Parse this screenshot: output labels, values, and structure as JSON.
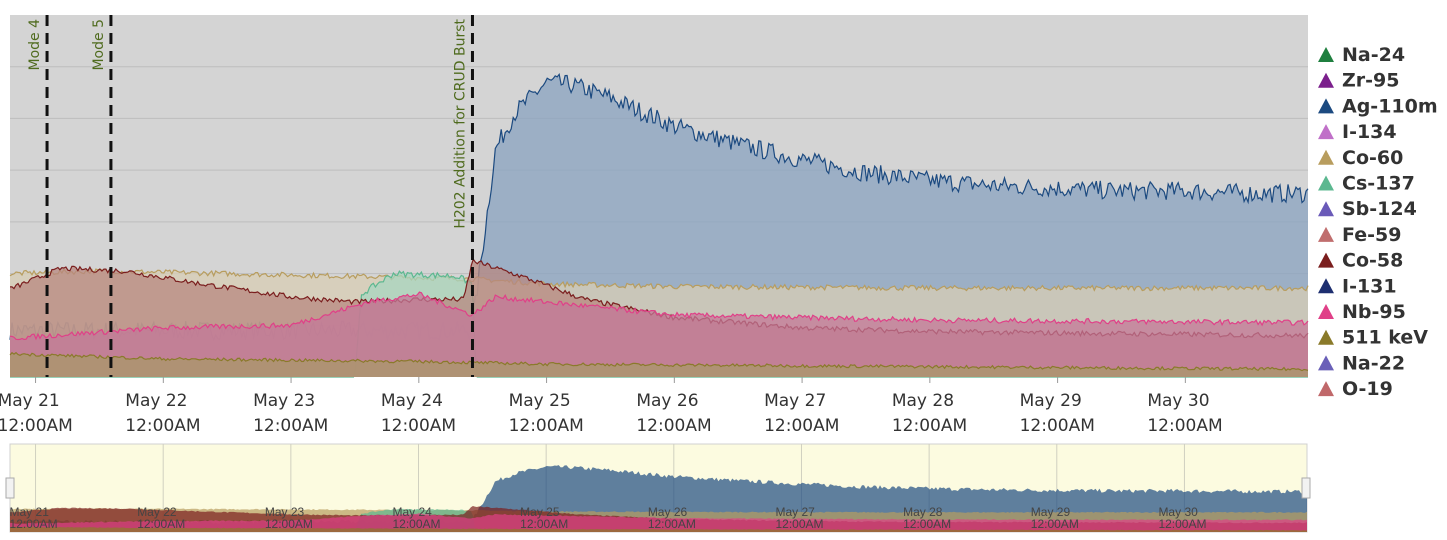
{
  "chart_data": {
    "type": "area",
    "title": "",
    "xlabel": "",
    "ylabel": "",
    "grid": true,
    "legend_position": "right",
    "x_ticks": [
      {
        "day": 21,
        "line1": "May 21",
        "line2": "12:00AM"
      },
      {
        "day": 22,
        "line1": "May 22",
        "line2": "12:00AM"
      },
      {
        "day": 23,
        "line1": "May 23",
        "line2": "12:00AM"
      },
      {
        "day": 24,
        "line1": "May 24",
        "line2": "12:00AM"
      },
      {
        "day": 25,
        "line1": "May 25",
        "line2": "12:00AM"
      },
      {
        "day": 26,
        "line1": "May 26",
        "line2": "12:00AM"
      },
      {
        "day": 27,
        "line1": "May 27",
        "line2": "12:00AM"
      },
      {
        "day": 28,
        "line1": "May 28",
        "line2": "12:00AM"
      },
      {
        "day": 29,
        "line1": "May 29",
        "line2": "12:00AM"
      },
      {
        "day": 30,
        "line1": "May 30",
        "line2": "12:00AM"
      }
    ],
    "x_range": [
      20.8,
      30.96
    ],
    "y_range": [
      0,
      7
    ],
    "events": [
      {
        "day": 21.09,
        "label": "Mode 4"
      },
      {
        "day": 21.59,
        "label": "Mode 5"
      },
      {
        "day": 24.42,
        "label": "H202 Addition for CRUD Burst"
      }
    ],
    "legend": [
      {
        "name": "Na-24",
        "color": "#1f7f3f"
      },
      {
        "name": "Zr-95",
        "color": "#7b1f8c"
      },
      {
        "name": "Ag-110m",
        "color": "#1c4a80"
      },
      {
        "name": "I-134",
        "color": "#c070c8"
      },
      {
        "name": "Co-60",
        "color": "#b89d5e"
      },
      {
        "name": "Cs-137",
        "color": "#5cb890"
      },
      {
        "name": "Sb-124",
        "color": "#6a5ab8"
      },
      {
        "name": "Fe-59",
        "color": "#c06e6e"
      },
      {
        "name": "Co-58",
        "color": "#7a1e1e"
      },
      {
        "name": "I-131",
        "color": "#1e2f70"
      },
      {
        "name": "Nb-95",
        "color": "#e04088"
      },
      {
        "name": "511 keV",
        "color": "#8a7a2a"
      },
      {
        "name": "Na-22",
        "color": "#6a60b8"
      },
      {
        "name": "O-19",
        "color": "#c0686a"
      }
    ],
    "series": [
      {
        "name": "Ag-110m",
        "color": "#1c4a80",
        "fill": "#8aa3c0",
        "noise": 0.18,
        "points": [
          [
            20.8,
            0.9
          ],
          [
            24.0,
            0.9
          ],
          [
            24.4,
            0.9
          ],
          [
            24.42,
            1.0
          ],
          [
            24.5,
            2.5
          ],
          [
            24.6,
            4.4
          ],
          [
            24.75,
            5.1
          ],
          [
            25.0,
            5.7
          ],
          [
            25.2,
            5.65
          ],
          [
            25.5,
            5.4
          ],
          [
            26.0,
            4.85
          ],
          [
            26.5,
            4.5
          ],
          [
            27.0,
            4.2
          ],
          [
            27.5,
            3.95
          ],
          [
            28.0,
            3.8
          ],
          [
            28.5,
            3.7
          ],
          [
            29.0,
            3.65
          ],
          [
            29.5,
            3.6
          ],
          [
            30.0,
            3.6
          ],
          [
            30.5,
            3.55
          ],
          [
            30.96,
            3.55
          ]
        ]
      },
      {
        "name": "Co-60",
        "color": "#b89d5e",
        "fill": "#d8ceb4",
        "noise": 0.05,
        "points": [
          [
            20.8,
            2.0
          ],
          [
            21.5,
            2.05
          ],
          [
            22.5,
            2.0
          ],
          [
            24.4,
            1.9
          ],
          [
            25.0,
            1.8
          ],
          [
            26.0,
            1.75
          ],
          [
            28.0,
            1.72
          ],
          [
            30.96,
            1.72
          ]
        ]
      },
      {
        "name": "Cs-137",
        "color": "#5cb890",
        "fill": "#a8d6c0",
        "noise": 0.06,
        "points": [
          [
            20.8,
            0.0
          ],
          [
            23.5,
            0.0
          ],
          [
            23.55,
            1.6
          ],
          [
            23.8,
            2.0
          ],
          [
            24.3,
            1.95
          ],
          [
            24.42,
            1.8
          ],
          [
            24.45,
            0.0
          ],
          [
            30.96,
            0.0
          ]
        ]
      },
      {
        "name": "Co-58",
        "color": "#7a1e1e",
        "fill": "#b88880",
        "noise": 0.05,
        "points": [
          [
            20.8,
            1.7
          ],
          [
            21.2,
            2.1
          ],
          [
            21.7,
            2.05
          ],
          [
            22.3,
            1.8
          ],
          [
            23.0,
            1.55
          ],
          [
            23.5,
            1.45
          ],
          [
            24.0,
            1.5
          ],
          [
            24.35,
            1.5
          ],
          [
            24.42,
            2.25
          ],
          [
            24.8,
            1.95
          ],
          [
            25.3,
            1.5
          ],
          [
            26.0,
            1.15
          ],
          [
            27.0,
            0.95
          ],
          [
            28.0,
            0.88
          ],
          [
            29.0,
            0.85
          ],
          [
            30.96,
            0.8
          ]
        ]
      },
      {
        "name": "Nb-95",
        "color": "#e04088",
        "fill": "#c47898",
        "noise": 0.05,
        "points": [
          [
            20.8,
            0.75
          ],
          [
            22.0,
            0.95
          ],
          [
            23.0,
            1.0
          ],
          [
            23.6,
            1.45
          ],
          [
            24.0,
            1.6
          ],
          [
            24.42,
            1.2
          ],
          [
            24.6,
            1.55
          ],
          [
            25.0,
            1.45
          ],
          [
            26.0,
            1.2
          ],
          [
            27.0,
            1.15
          ],
          [
            28.0,
            1.1
          ],
          [
            30.96,
            1.05
          ]
        ]
      },
      {
        "name": "511 keV",
        "color": "#8a7a2a",
        "fill": "#a89868",
        "noise": 0.03,
        "points": [
          [
            20.8,
            0.45
          ],
          [
            22.0,
            0.35
          ],
          [
            24.0,
            0.3
          ],
          [
            25.0,
            0.25
          ],
          [
            30.96,
            0.15
          ]
        ]
      }
    ]
  }
}
